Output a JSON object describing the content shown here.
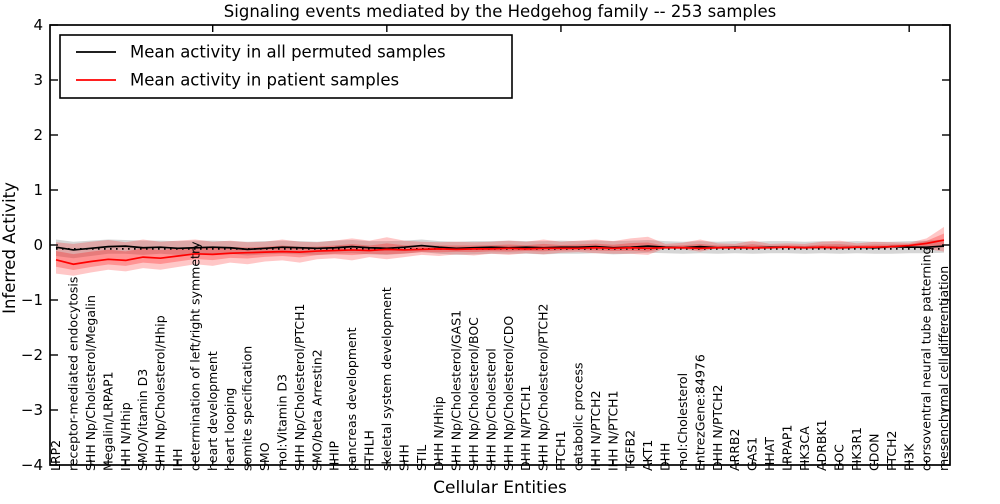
{
  "title": "Signaling events mediated by the Hedgehog family -- 253 samples",
  "axes": {
    "ylabel": "Inferred Activity",
    "xlabel": "Cellular Entities",
    "ytick_labels": [
      "4",
      "3",
      "2",
      "1",
      "0",
      "−1",
      "−2",
      "−3",
      "−4"
    ],
    "ytick_values": [
      4,
      3,
      2,
      1,
      0,
      -1,
      -2,
      -3,
      -4
    ],
    "ylim": [
      -4,
      4
    ]
  },
  "legend": {
    "entries": [
      {
        "label": "Mean activity in all permuted samples",
        "color": "#000000"
      },
      {
        "label": "Mean activity in patient samples",
        "color": "#ff0000"
      }
    ],
    "position": "upper left"
  },
  "colors": {
    "permuted_line": "#000000",
    "patient_line": "#ff0000",
    "permuted_band": "rgba(0,0,0,0.16)",
    "patient_band": "rgba(255,0,0,0.22)",
    "patient_band_inner": "rgba(255,0,0,0.26)",
    "frame": "#000000",
    "background": "#ffffff"
  },
  "chart_data": {
    "type": "line",
    "title": "Signaling events mediated by the Hedgehog family -- 253 samples",
    "xlabel": "Cellular Entities",
    "ylabel": "Inferred Activity",
    "ylim": [
      -4,
      4
    ],
    "grid": false,
    "legend_position": "upper left",
    "categories": [
      "LRP2",
      "receptor-mediated endocytosis",
      "SHH Np/Cholesterol/Megalin",
      "Megalin/LRPAP1",
      "IHH N/Hhip",
      "SMO/Vitamin D3",
      "SHH Np/Cholesterol/Hhip",
      "IHH",
      "determination of left/right symmetry",
      "heart development",
      "heart looping",
      "somite specification",
      "SMO",
      "mol:Vitamin D3",
      "SHH Np/Cholesterol/PTCH1",
      "SMO/beta Arrestin2",
      "HHIP",
      "pancreas development",
      "PTHLH",
      "skeletal system development",
      "SHH",
      "STIL",
      "DHH N/Hhip",
      "SHH Np/Cholesterol/GAS1",
      "SHH Np/Cholesterol/BOC",
      "SHH Np/Cholesterol",
      "SHH Np/Cholesterol/CDO",
      "DHH N/PTCH1",
      "SHH Np/Cholesterol/PTCH2",
      "PTCH1",
      "catabolic process",
      "IHH N/PTCH2",
      "IHH N/PTCH1",
      "TGFB2",
      "AKT1",
      "DHH",
      "mol:Cholesterol",
      "EntrezGene:84976",
      "DHH N/PTCH2",
      "ARRB2",
      "GAS1",
      "HHAT",
      "LRPAP1",
      "PIK3CA",
      "ADRBK1",
      "BOC",
      "PIK3R1",
      "CDON",
      "PTCH2",
      "PI3K",
      "dorsoventral neural tube patterning",
      "mesenchymal cell differentiation"
    ],
    "series": [
      {
        "name": "Mean activity in all permuted samples",
        "color": "#000000",
        "values": [
          -0.04,
          -0.09,
          -0.06,
          -0.03,
          -0.02,
          -0.05,
          -0.04,
          -0.06,
          -0.05,
          -0.04,
          -0.05,
          -0.08,
          -0.06,
          -0.04,
          -0.05,
          -0.06,
          -0.05,
          -0.03,
          -0.05,
          -0.06,
          -0.04,
          -0.01,
          -0.04,
          -0.06,
          -0.05,
          -0.04,
          -0.05,
          -0.04,
          -0.05,
          -0.04,
          -0.04,
          -0.03,
          -0.05,
          -0.04,
          -0.02,
          -0.04,
          -0.05,
          -0.03,
          -0.05,
          -0.04,
          -0.05,
          -0.04,
          -0.04,
          -0.05,
          -0.04,
          -0.05,
          -0.04,
          -0.05,
          -0.03,
          -0.04,
          -0.04,
          -0.02
        ]
      },
      {
        "name": "Mean activity in patient samples",
        "color": "#ff0000",
        "values": [
          -0.27,
          -0.35,
          -0.3,
          -0.26,
          -0.28,
          -0.22,
          -0.24,
          -0.2,
          -0.16,
          -0.17,
          -0.15,
          -0.14,
          -0.13,
          -0.12,
          -0.13,
          -0.11,
          -0.1,
          -0.09,
          -0.1,
          -0.08,
          -0.09,
          -0.08,
          -0.07,
          -0.08,
          -0.07,
          -0.07,
          -0.06,
          -0.07,
          -0.06,
          -0.06,
          -0.06,
          -0.05,
          -0.06,
          -0.05,
          -0.06,
          -0.05,
          -0.05,
          -0.06,
          -0.05,
          -0.05,
          -0.05,
          -0.05,
          -0.04,
          -0.05,
          -0.04,
          -0.05,
          -0.04,
          -0.04,
          -0.03,
          -0.01,
          0.03,
          0.09
        ]
      }
    ],
    "bands": [
      {
        "name": "permuted std band",
        "color": "rgba(0,0,0,0.16)",
        "upper": [
          0.1,
          0.06,
          0.08,
          0.1,
          0.09,
          0.08,
          0.08,
          0.07,
          0.08,
          0.08,
          0.07,
          0.06,
          0.07,
          0.08,
          0.07,
          0.06,
          0.08,
          0.09,
          0.07,
          0.07,
          0.08,
          0.1,
          0.07,
          0.06,
          0.07,
          0.07,
          0.08,
          0.07,
          0.07,
          0.08,
          0.07,
          0.08,
          0.07,
          0.08,
          0.09,
          0.07,
          0.06,
          0.07,
          0.06,
          0.07,
          0.06,
          0.07,
          0.07,
          0.06,
          0.07,
          0.06,
          0.07,
          0.06,
          0.06,
          0.07,
          0.08,
          0.1
        ],
        "lower": [
          -0.2,
          -0.24,
          -0.2,
          -0.16,
          -0.16,
          -0.18,
          -0.16,
          -0.18,
          -0.18,
          -0.16,
          -0.16,
          -0.19,
          -0.17,
          -0.16,
          -0.17,
          -0.18,
          -0.16,
          -0.15,
          -0.17,
          -0.18,
          -0.16,
          -0.13,
          -0.16,
          -0.18,
          -0.17,
          -0.16,
          -0.16,
          -0.16,
          -0.17,
          -0.16,
          -0.16,
          -0.15,
          -0.17,
          -0.16,
          -0.14,
          -0.15,
          -0.16,
          -0.15,
          -0.16,
          -0.15,
          -0.16,
          -0.15,
          -0.15,
          -0.16,
          -0.15,
          -0.16,
          -0.15,
          -0.16,
          -0.16,
          -0.15,
          -0.15,
          -0.14
        ]
      },
      {
        "name": "patient std band",
        "color": "rgba(255,0,0,0.22)",
        "upper": [
          0.05,
          0.02,
          0.06,
          0.09,
          0.05,
          0.1,
          0.06,
          0.08,
          0.1,
          0.06,
          0.08,
          0.05,
          0.06,
          0.1,
          0.06,
          0.05,
          0.08,
          0.12,
          0.08,
          0.14,
          0.08,
          0.06,
          0.05,
          0.06,
          0.05,
          0.06,
          0.08,
          0.06,
          0.1,
          0.06,
          0.08,
          0.1,
          0.07,
          0.12,
          0.15,
          0.02,
          0.04,
          0.1,
          0.03,
          0.02,
          0.08,
          0.02,
          0.03,
          0.02,
          0.06,
          0.08,
          0.03,
          0.06,
          0.05,
          0.04,
          0.12,
          0.33
        ],
        "lower": [
          -0.52,
          -0.56,
          -0.5,
          -0.45,
          -0.48,
          -0.42,
          -0.45,
          -0.4,
          -0.35,
          -0.38,
          -0.32,
          -0.35,
          -0.3,
          -0.28,
          -0.32,
          -0.26,
          -0.24,
          -0.28,
          -0.22,
          -0.26,
          -0.22,
          -0.18,
          -0.2,
          -0.17,
          -0.19,
          -0.16,
          -0.18,
          -0.15,
          -0.17,
          -0.14,
          -0.13,
          -0.15,
          -0.16,
          -0.16,
          -0.18,
          -0.06,
          -0.08,
          -0.12,
          -0.06,
          -0.05,
          -0.09,
          -0.05,
          -0.06,
          -0.05,
          -0.08,
          -0.08,
          -0.05,
          -0.07,
          -0.06,
          -0.05,
          -0.07,
          -0.12
        ]
      }
    ],
    "reference_line": {
      "value": -0.07,
      "style": "dotted",
      "color": "#000000"
    },
    "top_tick_indices": [
      9,
      19,
      29,
      39,
      49
    ]
  }
}
